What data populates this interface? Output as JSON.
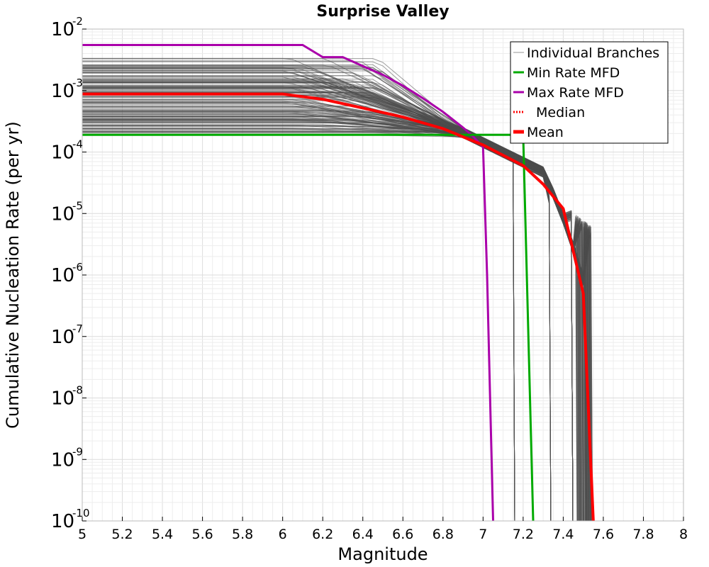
{
  "chart_data": {
    "type": "line",
    "title": "Surprise Valley",
    "xlabel": "Magnitude",
    "ylabel": "Cumulative Nucleation Rate (per yr)",
    "xlim": [
      5,
      8
    ],
    "ylim": [
      1e-10,
      0.01
    ],
    "y_scale": "log",
    "grid": true,
    "legend_position": "top-right",
    "x_ticks": [
      "5",
      "5.2",
      "5.4",
      "5.6",
      "5.8",
      "6",
      "6.2",
      "6.4",
      "6.6",
      "6.8",
      "7",
      "7.2",
      "7.4",
      "7.6",
      "7.8",
      "8"
    ],
    "y_ticks": [
      {
        "value": 0.01,
        "base": "10",
        "exp": "-2"
      },
      {
        "value": 0.001,
        "base": "10",
        "exp": "-3"
      },
      {
        "value": 0.0001,
        "base": "10",
        "exp": "-4"
      },
      {
        "value": 1e-05,
        "base": "10",
        "exp": "-5"
      },
      {
        "value": 1e-06,
        "base": "10",
        "exp": "-6"
      },
      {
        "value": 1e-07,
        "base": "10",
        "exp": "-7"
      },
      {
        "value": 1e-08,
        "base": "10",
        "exp": "-8"
      },
      {
        "value": 1e-09,
        "base": "10",
        "exp": "-9"
      },
      {
        "value": 1e-10,
        "base": "10",
        "exp": "-10"
      }
    ],
    "legend": [
      {
        "label": "Individual Branches",
        "color": "#4d4d4d",
        "style": "thin"
      },
      {
        "label": "Min Rate MFD",
        "color": "#00aa00",
        "style": "solid"
      },
      {
        "label": "Max Rate MFD",
        "color": "#aa00aa",
        "style": "solid"
      },
      {
        "label": "Median",
        "color": "#ff0000",
        "style": "dotted"
      },
      {
        "label": "Mean",
        "color": "#ff0000",
        "style": "thick"
      }
    ],
    "series": [
      {
        "name": "Max Rate MFD",
        "color": "#aa00aa",
        "x": [
          5.0,
          6.1,
          6.2,
          6.3,
          6.4,
          6.5,
          6.6,
          6.7,
          6.8,
          6.9,
          6.95,
          7.0,
          7.02,
          7.05
        ],
        "y": [
          0.0055,
          0.0055,
          0.0035,
          0.0035,
          0.0025,
          0.0018,
          0.0012,
          0.00075,
          0.00045,
          0.00025,
          0.00018,
          0.00012,
          1e-06,
          1e-10
        ]
      },
      {
        "name": "Min Rate MFD",
        "color": "#00aa00",
        "x": [
          5.0,
          7.0,
          7.2,
          7.25
        ],
        "y": [
          0.00019,
          0.00019,
          0.00019,
          1e-10
        ]
      },
      {
        "name": "Mean",
        "color": "#ff0000",
        "x": [
          5.0,
          6.0,
          6.2,
          6.4,
          6.6,
          6.8,
          7.0,
          7.2,
          7.3,
          7.4,
          7.5,
          7.55
        ],
        "y": [
          0.00088,
          0.00088,
          0.00072,
          0.00052,
          0.00037,
          0.00024,
          0.00013,
          6e-05,
          3e-05,
          1.2e-05,
          5e-07,
          1e-10
        ]
      }
    ],
    "branch_cutoffs": [
      7.15,
      7.33,
      7.44
    ]
  }
}
